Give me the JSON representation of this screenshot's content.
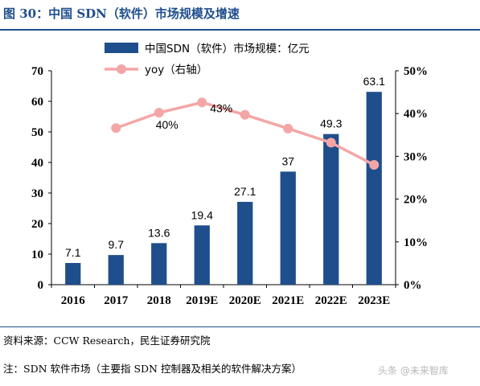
{
  "figure": {
    "title": "图 30：中国 SDN（软件）市场规模及增速",
    "source": "资料来源：CCW Research，民生证券研究院",
    "note": "注：SDN 软件市场（主要指 SDN 控制器及相关的软件解决方案）",
    "watermark": "头条 @未来智库"
  },
  "chart_data": {
    "type": "bar",
    "categories": [
      "2016",
      "2017",
      "2018",
      "2019E",
      "2020E",
      "2021E",
      "2022E",
      "2023E"
    ],
    "series": [
      {
        "name": "中国SDN（软件）市场规模：亿元",
        "type": "bar",
        "axis": "left",
        "values": [
          7.1,
          9.7,
          13.6,
          19.4,
          27.1,
          37,
          49.3,
          63.1
        ],
        "data_labels": [
          "7.1",
          "9.7",
          "13.6",
          "19.4",
          "27.1",
          "37",
          "49.3",
          "63.1"
        ],
        "color": "#1f4e8c"
      },
      {
        "name": "yoy（右轴）",
        "type": "line",
        "axis": "right",
        "values": [
          null,
          0.366,
          0.402,
          0.426,
          0.397,
          0.365,
          0.332,
          0.28
        ],
        "data_labels": {
          "2": "40%",
          "3": "43%"
        },
        "color": "#f4a6a6"
      }
    ],
    "ylim": [
      0,
      70
    ],
    "y_ticks": [
      "0",
      "10",
      "20",
      "30",
      "40",
      "50",
      "60",
      "70"
    ],
    "y2lim": [
      0,
      0.5
    ],
    "y2_ticks": [
      "0%",
      "10%",
      "20%",
      "30%",
      "40%",
      "50%"
    ],
    "legend": "top",
    "grid": false
  }
}
